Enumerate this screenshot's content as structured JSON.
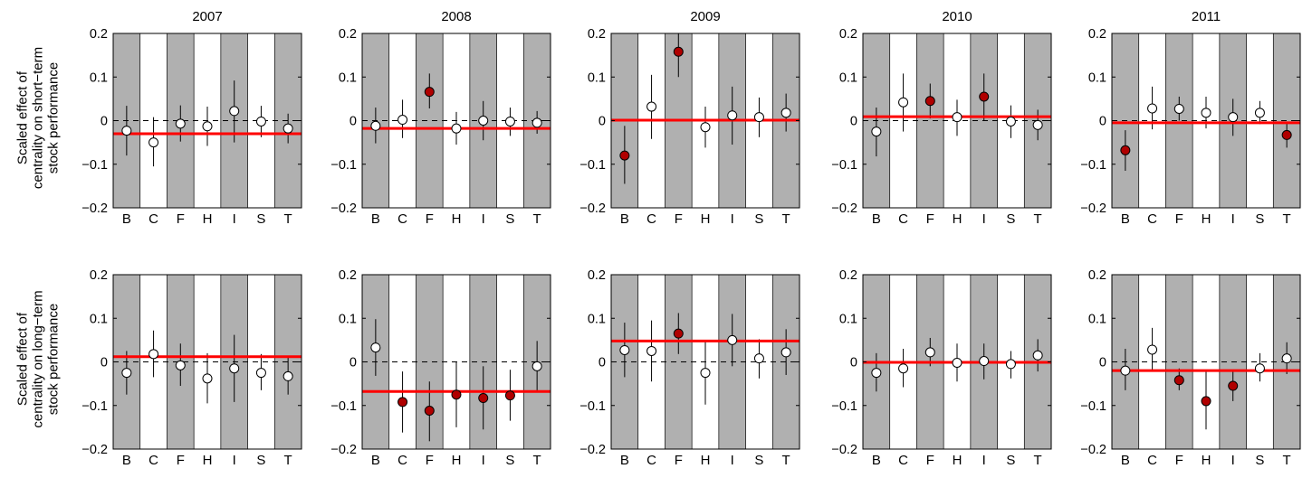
{
  "row_labels": [
    [
      "Scaled effect of",
      "centrality on short−term",
      "stock performance"
    ],
    [
      "Scaled effect of",
      "centrality on long−term",
      "stock performance"
    ]
  ],
  "colors": {
    "shade": "#b0b0b0",
    "regression_line": "#ff0000",
    "significant_point": "#b00000",
    "nonsignificant_point": "#ffffff"
  },
  "chart_data": [
    {
      "type": "scatter",
      "panel": "short-term 2007",
      "title": "2007",
      "categories": [
        "B",
        "C",
        "F",
        "H",
        "I",
        "S",
        "T"
      ],
      "ylim": [
        -0.2,
        0.2
      ],
      "yticks": [
        "−0.2",
        "−0.1",
        "0",
        "0.1",
        "0.2"
      ],
      "shaded_categories": [
        "B",
        "F",
        "I",
        "T"
      ],
      "estimates": [
        -0.023,
        -0.05,
        -0.007,
        -0.013,
        0.022,
        -0.002,
        -0.018
      ],
      "ci_low": [
        -0.08,
        -0.105,
        -0.048,
        -0.058,
        -0.05,
        -0.038,
        -0.052
      ],
      "ci_high": [
        0.034,
        0.008,
        0.035,
        0.032,
        0.092,
        0.034,
        0.016
      ],
      "significant": [
        false,
        false,
        false,
        false,
        false,
        false,
        false
      ],
      "pooled_effect": -0.03
    },
    {
      "type": "scatter",
      "panel": "short-term 2008",
      "title": "2008",
      "categories": [
        "B",
        "C",
        "F",
        "H",
        "I",
        "S",
        "T"
      ],
      "ylim": [
        -0.2,
        0.2
      ],
      "yticks": [
        "−0.2",
        "−0.1",
        "0",
        "0.1",
        "0.2"
      ],
      "shaded_categories": [
        "B",
        "F",
        "I",
        "T"
      ],
      "estimates": [
        -0.012,
        0.002,
        0.066,
        -0.018,
        0.0,
        -0.002,
        -0.005
      ],
      "ci_low": [
        -0.052,
        -0.04,
        0.028,
        -0.055,
        -0.045,
        -0.035,
        -0.03
      ],
      "ci_high": [
        0.03,
        0.048,
        0.108,
        0.02,
        0.045,
        0.03,
        0.022
      ],
      "significant": [
        false,
        false,
        true,
        false,
        false,
        false,
        false
      ],
      "pooled_effect": -0.018
    },
    {
      "type": "scatter",
      "panel": "short-term 2009",
      "title": "2009",
      "categories": [
        "B",
        "C",
        "F",
        "H",
        "I",
        "S",
        "T"
      ],
      "ylim": [
        -0.2,
        0.2
      ],
      "yticks": [
        "−0.2",
        "−0.1",
        "0",
        "0.1",
        "0.2"
      ],
      "shaded_categories": [
        "B",
        "F",
        "I",
        "T"
      ],
      "estimates": [
        -0.08,
        0.032,
        0.158,
        -0.015,
        0.012,
        0.008,
        0.018
      ],
      "ci_low": [
        -0.145,
        -0.042,
        0.1,
        -0.062,
        -0.055,
        -0.038,
        -0.025
      ],
      "ci_high": [
        -0.012,
        0.105,
        0.2,
        0.032,
        0.078,
        0.053,
        0.062
      ],
      "significant": [
        true,
        false,
        true,
        false,
        false,
        false,
        false
      ],
      "pooled_effect": 0.001
    },
    {
      "type": "scatter",
      "panel": "short-term 2010",
      "title": "2010",
      "categories": [
        "B",
        "C",
        "F",
        "H",
        "I",
        "S",
        "T"
      ],
      "ylim": [
        -0.2,
        0.2
      ],
      "yticks": [
        "−0.2",
        "−0.1",
        "0",
        "0.1",
        "0.2"
      ],
      "shaded_categories": [
        "B",
        "F",
        "I",
        "T"
      ],
      "estimates": [
        -0.025,
        0.042,
        0.045,
        0.008,
        0.055,
        -0.002,
        -0.01
      ],
      "ci_low": [
        -0.082,
        -0.025,
        0.005,
        -0.035,
        0.0,
        -0.04,
        -0.045
      ],
      "ci_high": [
        0.03,
        0.108,
        0.085,
        0.048,
        0.108,
        0.035,
        0.025
      ],
      "significant": [
        false,
        false,
        true,
        false,
        true,
        false,
        false
      ],
      "pooled_effect": 0.009
    },
    {
      "type": "scatter",
      "panel": "short-term 2011",
      "title": "2011",
      "categories": [
        "B",
        "C",
        "F",
        "H",
        "I",
        "S",
        "T"
      ],
      "ylim": [
        -0.2,
        0.2
      ],
      "yticks": [
        "−0.2",
        "−0.1",
        "0",
        "0.1",
        "0.2"
      ],
      "shaded_categories": [
        "B",
        "F",
        "I",
        "T"
      ],
      "estimates": [
        -0.068,
        0.028,
        0.027,
        0.018,
        0.008,
        0.018,
        -0.033
      ],
      "ci_low": [
        -0.115,
        -0.02,
        0.0,
        -0.018,
        -0.035,
        -0.008,
        -0.062
      ],
      "ci_high": [
        -0.022,
        0.078,
        0.055,
        0.055,
        0.05,
        0.045,
        -0.005
      ],
      "significant": [
        true,
        false,
        false,
        false,
        false,
        false,
        true
      ],
      "pooled_effect": -0.005
    },
    {
      "type": "scatter",
      "panel": "long-term 2007",
      "title": "",
      "categories": [
        "B",
        "C",
        "F",
        "H",
        "I",
        "S",
        "T"
      ],
      "ylim": [
        -0.2,
        0.2
      ],
      "yticks": [
        "−0.2",
        "−0.1",
        "0",
        "0.1",
        "0.2"
      ],
      "shaded_categories": [
        "B",
        "F",
        "I",
        "T"
      ],
      "estimates": [
        -0.025,
        0.018,
        -0.008,
        -0.038,
        -0.015,
        -0.025,
        -0.033
      ],
      "ci_low": [
        -0.075,
        -0.035,
        -0.055,
        -0.095,
        -0.092,
        -0.065,
        -0.075
      ],
      "ci_high": [
        0.025,
        0.072,
        0.042,
        0.02,
        0.062,
        0.018,
        0.01
      ],
      "significant": [
        false,
        false,
        false,
        false,
        false,
        false,
        false
      ],
      "pooled_effect": 0.012
    },
    {
      "type": "scatter",
      "panel": "long-term 2008",
      "title": "",
      "categories": [
        "B",
        "C",
        "F",
        "H",
        "I",
        "S",
        "T"
      ],
      "ylim": [
        -0.2,
        0.2
      ],
      "yticks": [
        "−0.2",
        "−0.1",
        "0",
        "0.1",
        "0.2"
      ],
      "shaded_categories": [
        "B",
        "F",
        "I",
        "T"
      ],
      "estimates": [
        0.033,
        -0.092,
        -0.112,
        -0.075,
        -0.083,
        -0.077,
        -0.01
      ],
      "ci_low": [
        -0.032,
        -0.162,
        -0.182,
        -0.15,
        -0.155,
        -0.135,
        -0.068
      ],
      "ci_high": [
        0.098,
        -0.022,
        -0.045,
        0.0,
        -0.01,
        -0.018,
        0.048
      ],
      "significant": [
        false,
        true,
        true,
        true,
        true,
        true,
        false
      ],
      "pooled_effect": -0.068
    },
    {
      "type": "scatter",
      "panel": "long-term 2009",
      "title": "",
      "categories": [
        "B",
        "C",
        "F",
        "H",
        "I",
        "S",
        "T"
      ],
      "ylim": [
        -0.2,
        0.2
      ],
      "yticks": [
        "−0.2",
        "−0.1",
        "0",
        "0.1",
        "0.2"
      ],
      "shaded_categories": [
        "B",
        "F",
        "I",
        "T"
      ],
      "estimates": [
        0.027,
        0.025,
        0.065,
        -0.025,
        0.05,
        0.008,
        0.022
      ],
      "ci_low": [
        -0.035,
        -0.045,
        0.018,
        -0.098,
        -0.01,
        -0.038,
        -0.03
      ],
      "ci_high": [
        0.09,
        0.095,
        0.112,
        0.048,
        0.11,
        0.052,
        0.075
      ],
      "significant": [
        false,
        false,
        true,
        false,
        false,
        false,
        false
      ],
      "pooled_effect": 0.048
    },
    {
      "type": "scatter",
      "panel": "long-term 2010",
      "title": "",
      "categories": [
        "B",
        "C",
        "F",
        "H",
        "I",
        "S",
        "T"
      ],
      "ylim": [
        -0.2,
        0.2
      ],
      "yticks": [
        "−0.2",
        "−0.1",
        "0",
        "0.1",
        "0.2"
      ],
      "shaded_categories": [
        "B",
        "F",
        "I",
        "T"
      ],
      "estimates": [
        -0.025,
        -0.015,
        0.022,
        -0.002,
        0.002,
        -0.005,
        0.015
      ],
      "ci_low": [
        -0.068,
        -0.058,
        -0.01,
        -0.045,
        -0.04,
        -0.038,
        -0.022
      ],
      "ci_high": [
        0.02,
        0.03,
        0.055,
        0.042,
        0.042,
        0.025,
        0.052
      ],
      "significant": [
        false,
        false,
        false,
        false,
        false,
        false,
        false
      ],
      "pooled_effect": -0.001
    },
    {
      "type": "scatter",
      "panel": "long-term 2011",
      "title": "",
      "categories": [
        "B",
        "C",
        "F",
        "H",
        "I",
        "S",
        "T"
      ],
      "ylim": [
        -0.2,
        0.2
      ],
      "yticks": [
        "−0.2",
        "−0.1",
        "0",
        "0.1",
        "0.2"
      ],
      "shaded_categories": [
        "B",
        "F",
        "I",
        "T"
      ],
      "estimates": [
        -0.02,
        0.028,
        -0.042,
        -0.09,
        -0.055,
        -0.015,
        0.008
      ],
      "ci_low": [
        -0.065,
        -0.02,
        -0.065,
        -0.155,
        -0.09,
        -0.045,
        -0.028
      ],
      "ci_high": [
        0.03,
        0.078,
        -0.015,
        -0.022,
        -0.02,
        0.02,
        0.045
      ],
      "significant": [
        false,
        false,
        true,
        true,
        true,
        false,
        false
      ],
      "pooled_effect": -0.02
    }
  ]
}
